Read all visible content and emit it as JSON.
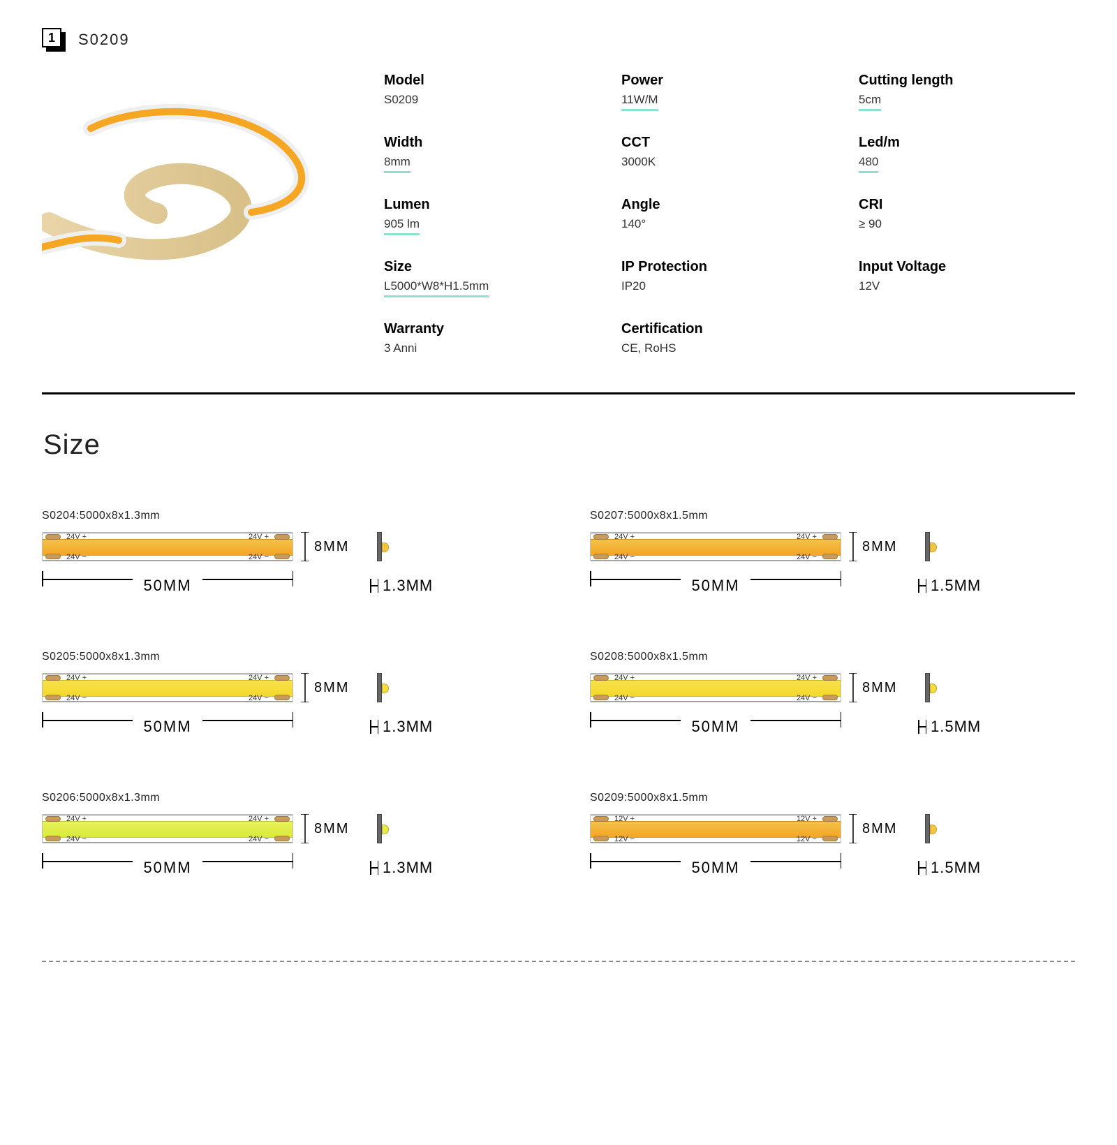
{
  "header": {
    "number": "1",
    "title": "S0209"
  },
  "colors": {
    "underline": "#8ee0cf",
    "pad": "#c89a5b",
    "pad_border": "#a07a40",
    "xsec_body": "#666666",
    "xsec_border": "#444444",
    "led_border": "#caa23a",
    "divider": "#000000",
    "dotted": "#888888"
  },
  "specs": [
    {
      "label": "Model",
      "value": "S0209",
      "underline": false
    },
    {
      "label": "Power",
      "value": "11W/M",
      "underline": true
    },
    {
      "label": "Cutting length",
      "value": "5cm",
      "underline": true
    },
    {
      "label": "Width",
      "value": "8mm",
      "underline": true
    },
    {
      "label": "CCT",
      "value": "3000K",
      "underline": false
    },
    {
      "label": "Led/m",
      "value": "480",
      "underline": true
    },
    {
      "label": "Lumen",
      "value": "905 lm",
      "underline": true
    },
    {
      "label": "Angle",
      "value": "140°",
      "underline": false
    },
    {
      "label": "CRI",
      "value": "≥ 90",
      "underline": false
    },
    {
      "label": "Size",
      "value": "L5000*W8*H1.5mm",
      "underline": true
    },
    {
      "label": "IP Protection",
      "value": "IP20",
      "underline": false
    },
    {
      "label": "Input Voltage",
      "value": "12V",
      "underline": false
    },
    {
      "label": "Warranty",
      "value": "3 Anni",
      "underline": false
    },
    {
      "label": "Certification",
      "value": "CE, RoHS",
      "underline": false
    }
  ],
  "size_section_title": "Size",
  "diagram_labels": {
    "height": "8MM",
    "width": "50MM"
  },
  "strips": [
    {
      "caption": "S0204:5000x8x1.3mm",
      "core_colors": [
        "#f2c14a",
        "#f5a623"
      ],
      "led_fill": "#f5c441",
      "thickness": "1.3MM",
      "v_plus": "24V +",
      "v_minus": "24V −"
    },
    {
      "caption": "S0207:5000x8x1.5mm",
      "core_colors": [
        "#f2c14a",
        "#f5a623"
      ],
      "led_fill": "#f5c441",
      "thickness": "1.5MM",
      "v_plus": "24V +",
      "v_minus": "24V −"
    },
    {
      "caption": "S0205:5000x8x1.3mm",
      "core_colors": [
        "#f7e04a",
        "#f4d92a"
      ],
      "led_fill": "#f4de3a",
      "thickness": "1.3MM",
      "v_plus": "24V +",
      "v_minus": "24V −"
    },
    {
      "caption": "S0208:5000x8x1.5mm",
      "core_colors": [
        "#f7e04a",
        "#f4d92a"
      ],
      "led_fill": "#f4de3a",
      "thickness": "1.5MM",
      "v_plus": "24V +",
      "v_minus": "24V −"
    },
    {
      "caption": "S0206:5000x8x1.3mm",
      "core_colors": [
        "#e7f25a",
        "#d9ea3a"
      ],
      "led_fill": "#e2ee4a",
      "thickness": "1.3MM",
      "v_plus": "24V +",
      "v_minus": "24V −"
    },
    {
      "caption": "S0209:5000x8x1.5mm",
      "core_colors": [
        "#f2c14a",
        "#f5a623"
      ],
      "led_fill": "#f5c441",
      "thickness": "1.5MM",
      "v_plus": "12V +",
      "v_minus": "12V −"
    }
  ]
}
